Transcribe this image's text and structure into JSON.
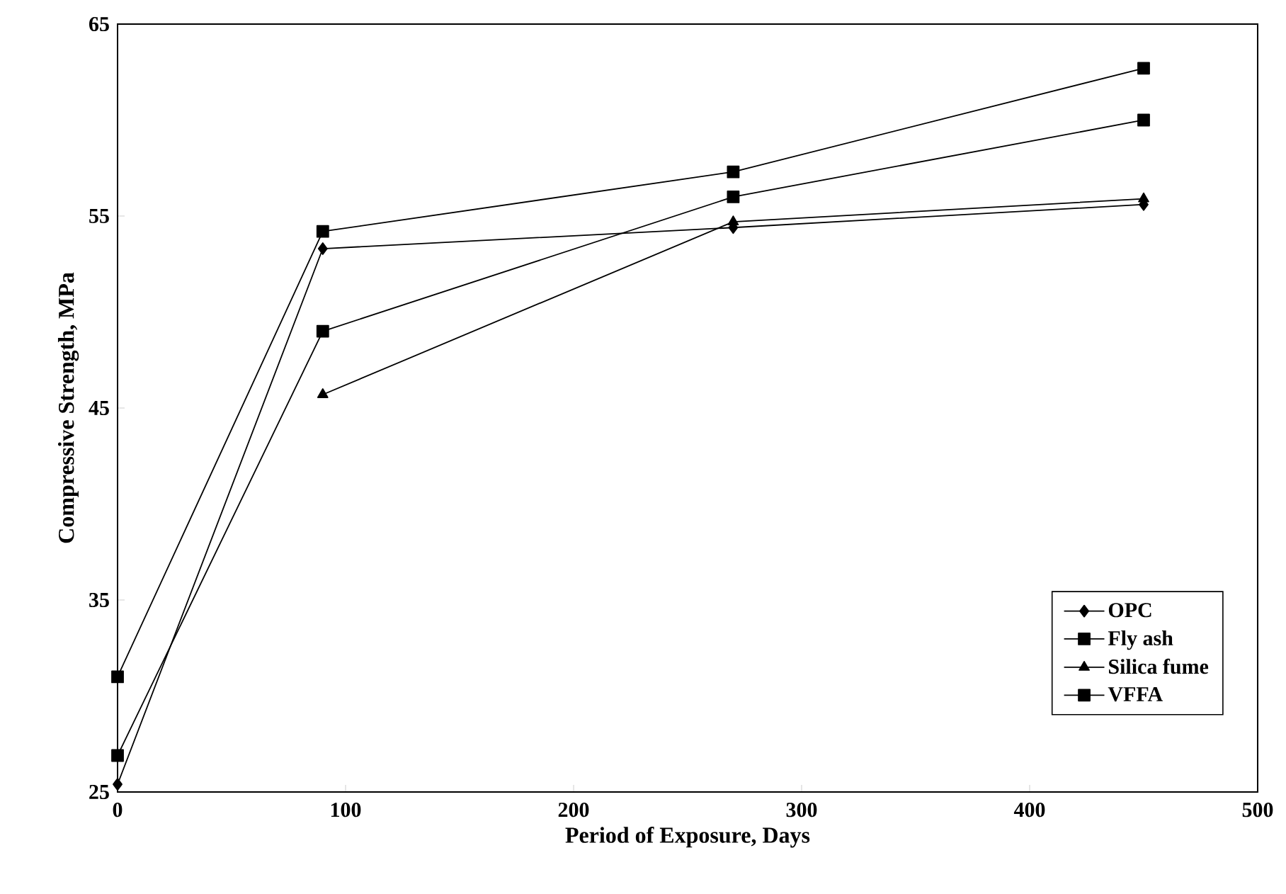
{
  "chart_data": {
    "type": "line",
    "xlabel": "Period of Exposure, Days",
    "ylabel": "Compressive Strength, MPa",
    "x": [
      0,
      90,
      270,
      450
    ],
    "series": [
      {
        "name": "OPC",
        "color": "#000000",
        "marker": "diamond",
        "values": [
          25.4,
          53.3,
          54.4,
          55.6
        ]
      },
      {
        "name": "Fly ash",
        "color": "#000000",
        "marker": "square",
        "values": [
          31,
          54.2,
          57.3,
          62.7
        ]
      },
      {
        "name": "Silica fume",
        "color": "#000000",
        "marker": "triangle",
        "values": [
          null,
          45.7,
          54.7,
          55.9
        ]
      },
      {
        "name": "VFFA",
        "color": "#000000",
        "marker": "square",
        "values": [
          26.9,
          49.0,
          56.0,
          60.0
        ]
      }
    ],
    "xlim": [
      0,
      500
    ],
    "xticks": [
      0,
      100,
      200,
      300,
      400,
      500
    ],
    "ylim": [
      25,
      65
    ],
    "yticks": [
      25,
      35,
      45,
      55,
      65
    ],
    "grid": false,
    "legend": "bottom right",
    "line_style": "solid"
  }
}
